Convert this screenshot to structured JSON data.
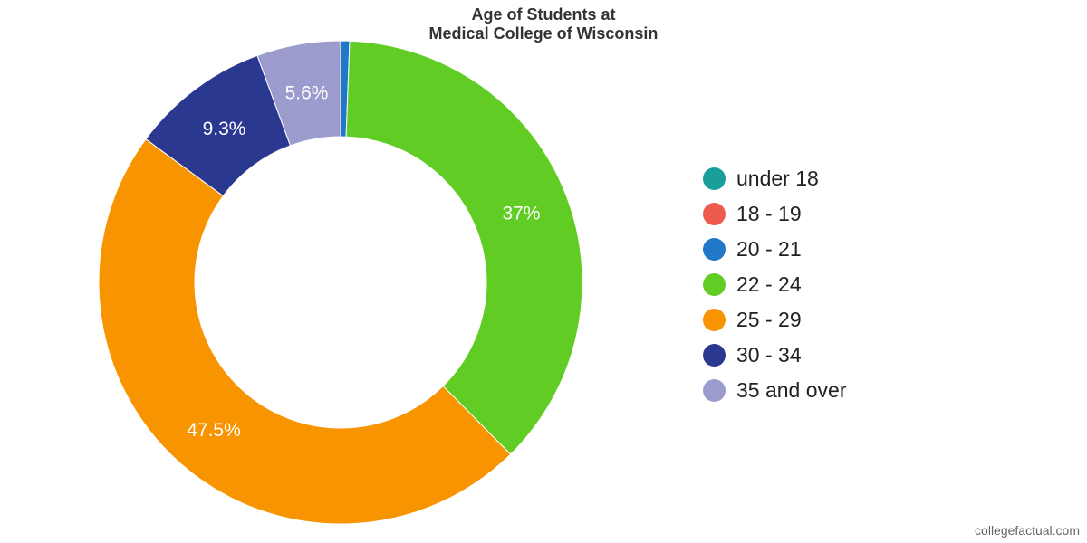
{
  "title": {
    "line1": "Age of Students at",
    "line2": "Medical College of Wisconsin"
  },
  "chart_data": {
    "type": "pie",
    "donut": true,
    "title": "Age of Students at Medical College of Wisconsin",
    "legend_position": "right",
    "categories": [
      "under 18",
      "18 - 19",
      "20 - 21",
      "22 - 24",
      "25 - 29",
      "30 - 34",
      "35 and over"
    ],
    "values": [
      0,
      0,
      0.6,
      37,
      47.5,
      9.3,
      5.6
    ],
    "data_labels": [
      "",
      "",
      "",
      "37%",
      "47.5%",
      "9.3%",
      "5.6%"
    ],
    "colors": [
      "#1a9e9b",
      "#ee5b4d",
      "#1f78c8",
      "#61cd24",
      "#f79400",
      "#2b3890",
      "#9b9bcd"
    ]
  },
  "credit": "collegefactual.com"
}
